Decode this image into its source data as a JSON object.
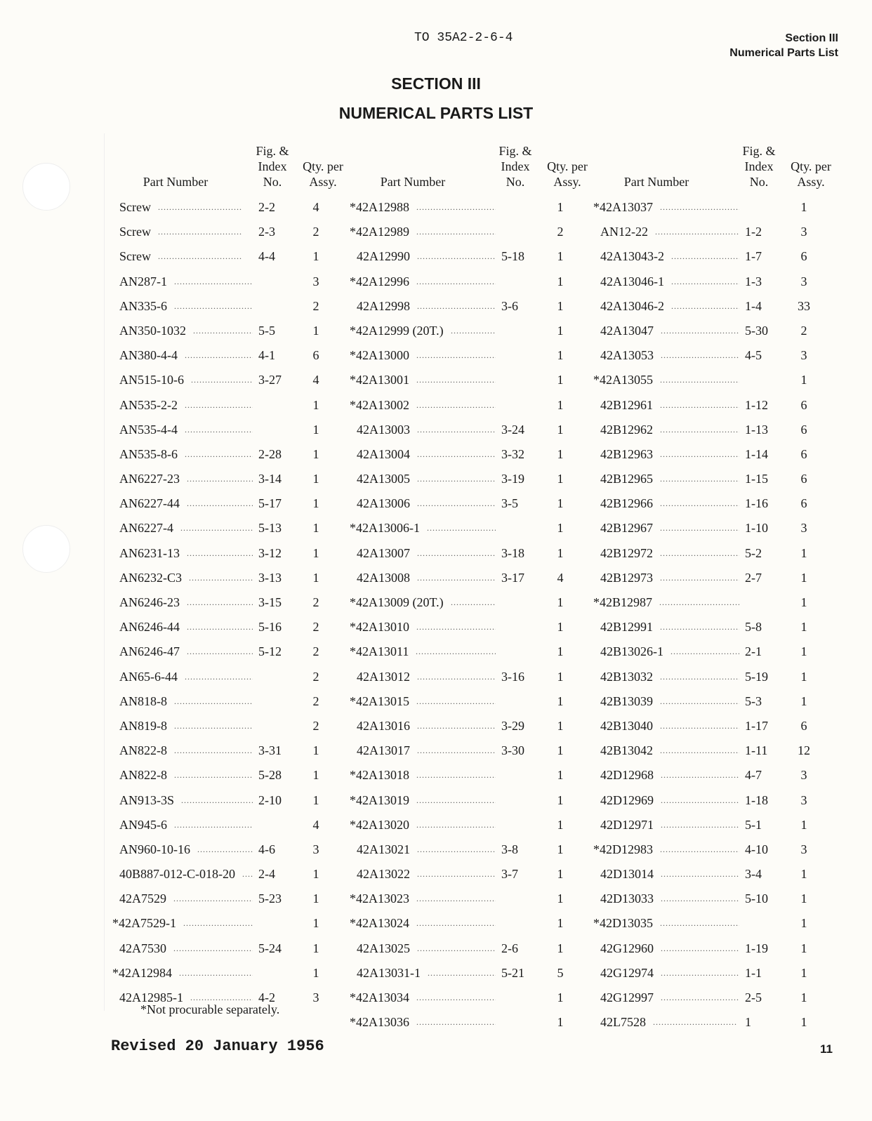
{
  "header": {
    "to_number": "TO 35A2-2-6-4",
    "section": "Section III",
    "section_title": "Numerical Parts List"
  },
  "title": {
    "line1": "SECTION III",
    "line2": "NUMERICAL PARTS LIST"
  },
  "column_headers": {
    "part_number": "Part Number",
    "fig_index": "Fig. & Index No.",
    "qty": "Qty. per Assy."
  },
  "columns": [
    [
      [
        "Screw",
        "2-2",
        "4"
      ],
      [
        "Screw",
        "2-3",
        "2"
      ],
      [
        "Screw",
        "4-4",
        "1"
      ],
      [
        "AN287-1",
        "",
        "3"
      ],
      [
        "AN335-6",
        "",
        "2"
      ],
      [
        "AN350-1032",
        "5-5",
        "1"
      ],
      [
        "AN380-4-4",
        "4-1",
        "6"
      ],
      [
        "AN515-10-6",
        "3-27",
        "4"
      ],
      [
        "AN535-2-2",
        "",
        "1"
      ],
      [
        "AN535-4-4",
        "",
        "1"
      ],
      [
        "AN535-8-6",
        "2-28",
        "1"
      ],
      [
        "AN6227-23",
        "3-14",
        "1"
      ],
      [
        "AN6227-44",
        "5-17",
        "1"
      ],
      [
        "AN6227-4",
        "5-13",
        "1"
      ],
      [
        "AN6231-13",
        "3-12",
        "1"
      ],
      [
        "AN6232-C3",
        "3-13",
        "1"
      ],
      [
        "AN6246-23",
        "3-15",
        "2"
      ],
      [
        "AN6246-44",
        "5-16",
        "2"
      ],
      [
        "AN6246-47",
        "5-12",
        "2"
      ],
      [
        "AN65-6-44",
        "",
        "2"
      ],
      [
        "AN818-8",
        "",
        "2"
      ],
      [
        "AN819-8",
        "",
        "2"
      ],
      [
        "AN822-8",
        "3-31",
        "1"
      ],
      [
        "AN822-8",
        "5-28",
        "1"
      ],
      [
        "AN913-3S",
        "2-10",
        "1"
      ],
      [
        "AN945-6",
        "",
        "4"
      ],
      [
        "AN960-10-16",
        "4-6",
        "3"
      ],
      [
        "40B887-012-C-018-20",
        "2-4",
        "1"
      ],
      [
        "42A7529",
        "5-23",
        "1"
      ],
      [
        "*42A7529-1",
        "",
        "1"
      ],
      [
        "42A7530",
        "5-24",
        "1"
      ],
      [
        "*42A12984",
        "",
        "1"
      ],
      [
        "42A12985-1",
        "4-2",
        "3"
      ]
    ],
    [
      [
        "*42A12988",
        "",
        "1"
      ],
      [
        "*42A12989",
        "",
        "2"
      ],
      [
        "42A12990",
        "5-18",
        "1"
      ],
      [
        "*42A12996",
        "",
        "1"
      ],
      [
        "42A12998",
        "3-6",
        "1"
      ],
      [
        "*42A12999 (20T.)",
        "",
        "1"
      ],
      [
        "*42A13000",
        "",
        "1"
      ],
      [
        "*42A13001",
        "",
        "1"
      ],
      [
        "*42A13002",
        "",
        "1"
      ],
      [
        "42A13003",
        "3-24",
        "1"
      ],
      [
        "42A13004",
        "3-32",
        "1"
      ],
      [
        "42A13005",
        "3-19",
        "1"
      ],
      [
        "42A13006",
        "3-5",
        "1"
      ],
      [
        "*42A13006-1",
        "",
        "1"
      ],
      [
        "42A13007",
        "3-18",
        "1"
      ],
      [
        "42A13008",
        "3-17",
        "4"
      ],
      [
        "*42A13009 (20T.)",
        "",
        "1"
      ],
      [
        "*42A13010",
        "",
        "1"
      ],
      [
        "*42A13011",
        "",
        "1"
      ],
      [
        "42A13012",
        "3-16",
        "1"
      ],
      [
        "*42A13015",
        "",
        "1"
      ],
      [
        "42A13016",
        "3-29",
        "1"
      ],
      [
        "42A13017",
        "3-30",
        "1"
      ],
      [
        "*42A13018",
        "",
        "1"
      ],
      [
        "*42A13019",
        "",
        "1"
      ],
      [
        "*42A13020",
        "",
        "1"
      ],
      [
        "42A13021",
        "3-8",
        "1"
      ],
      [
        "42A13022",
        "3-7",
        "1"
      ],
      [
        "*42A13023",
        "",
        "1"
      ],
      [
        "*42A13024",
        "",
        "1"
      ],
      [
        "42A13025",
        "2-6",
        "1"
      ],
      [
        "42A13031-1",
        "5-21",
        "5"
      ],
      [
        "*42A13034",
        "",
        "1"
      ],
      [
        "*42A13036",
        "",
        "1"
      ]
    ],
    [
      [
        "*42A13037",
        "",
        "1"
      ],
      [
        "AN12-22",
        "1-2",
        "3"
      ],
      [
        "42A13043-2",
        "1-7",
        "6"
      ],
      [
        "42A13046-1",
        "1-3",
        "3"
      ],
      [
        "42A13046-2",
        "1-4",
        "33"
      ],
      [
        "42A13047",
        "5-30",
        "2"
      ],
      [
        "42A13053",
        "4-5",
        "3"
      ],
      [
        "*42A13055",
        "",
        "1"
      ],
      [
        "42B12961",
        "1-12",
        "6"
      ],
      [
        "42B12962",
        "1-13",
        "6"
      ],
      [
        "42B12963",
        "1-14",
        "6"
      ],
      [
        "42B12965",
        "1-15",
        "6"
      ],
      [
        "42B12966",
        "1-16",
        "6"
      ],
      [
        "42B12967",
        "1-10",
        "3"
      ],
      [
        "42B12972",
        "5-2",
        "1"
      ],
      [
        "42B12973",
        "2-7",
        "1"
      ],
      [
        "*42B12987",
        "",
        "1"
      ],
      [
        "42B12991",
        "5-8",
        "1"
      ],
      [
        "42B13026-1",
        "2-1",
        "1"
      ],
      [
        "42B13032",
        "5-19",
        "1"
      ],
      [
        "42B13039",
        "5-3",
        "1"
      ],
      [
        "42B13040",
        "1-17",
        "6"
      ],
      [
        "42B13042",
        "1-11",
        "12"
      ],
      [
        "42D12968",
        "4-7",
        "3"
      ],
      [
        "42D12969",
        "1-18",
        "3"
      ],
      [
        "42D12971",
        "5-1",
        "1"
      ],
      [
        "*42D12983",
        "4-10",
        "3"
      ],
      [
        "42D13014",
        "3-4",
        "1"
      ],
      [
        "42D13033",
        "5-10",
        "1"
      ],
      [
        "*42D13035",
        "",
        "1"
      ],
      [
        "42G12960",
        "1-19",
        "1"
      ],
      [
        "42G12974",
        "1-1",
        "1"
      ],
      [
        "42G12997",
        "2-5",
        "1"
      ],
      [
        "42L7528",
        "1",
        "1"
      ]
    ]
  ],
  "footnote": "*Not procurable separately.",
  "footer": {
    "revised": "Revised 20 January 1956",
    "page_number": "11"
  }
}
